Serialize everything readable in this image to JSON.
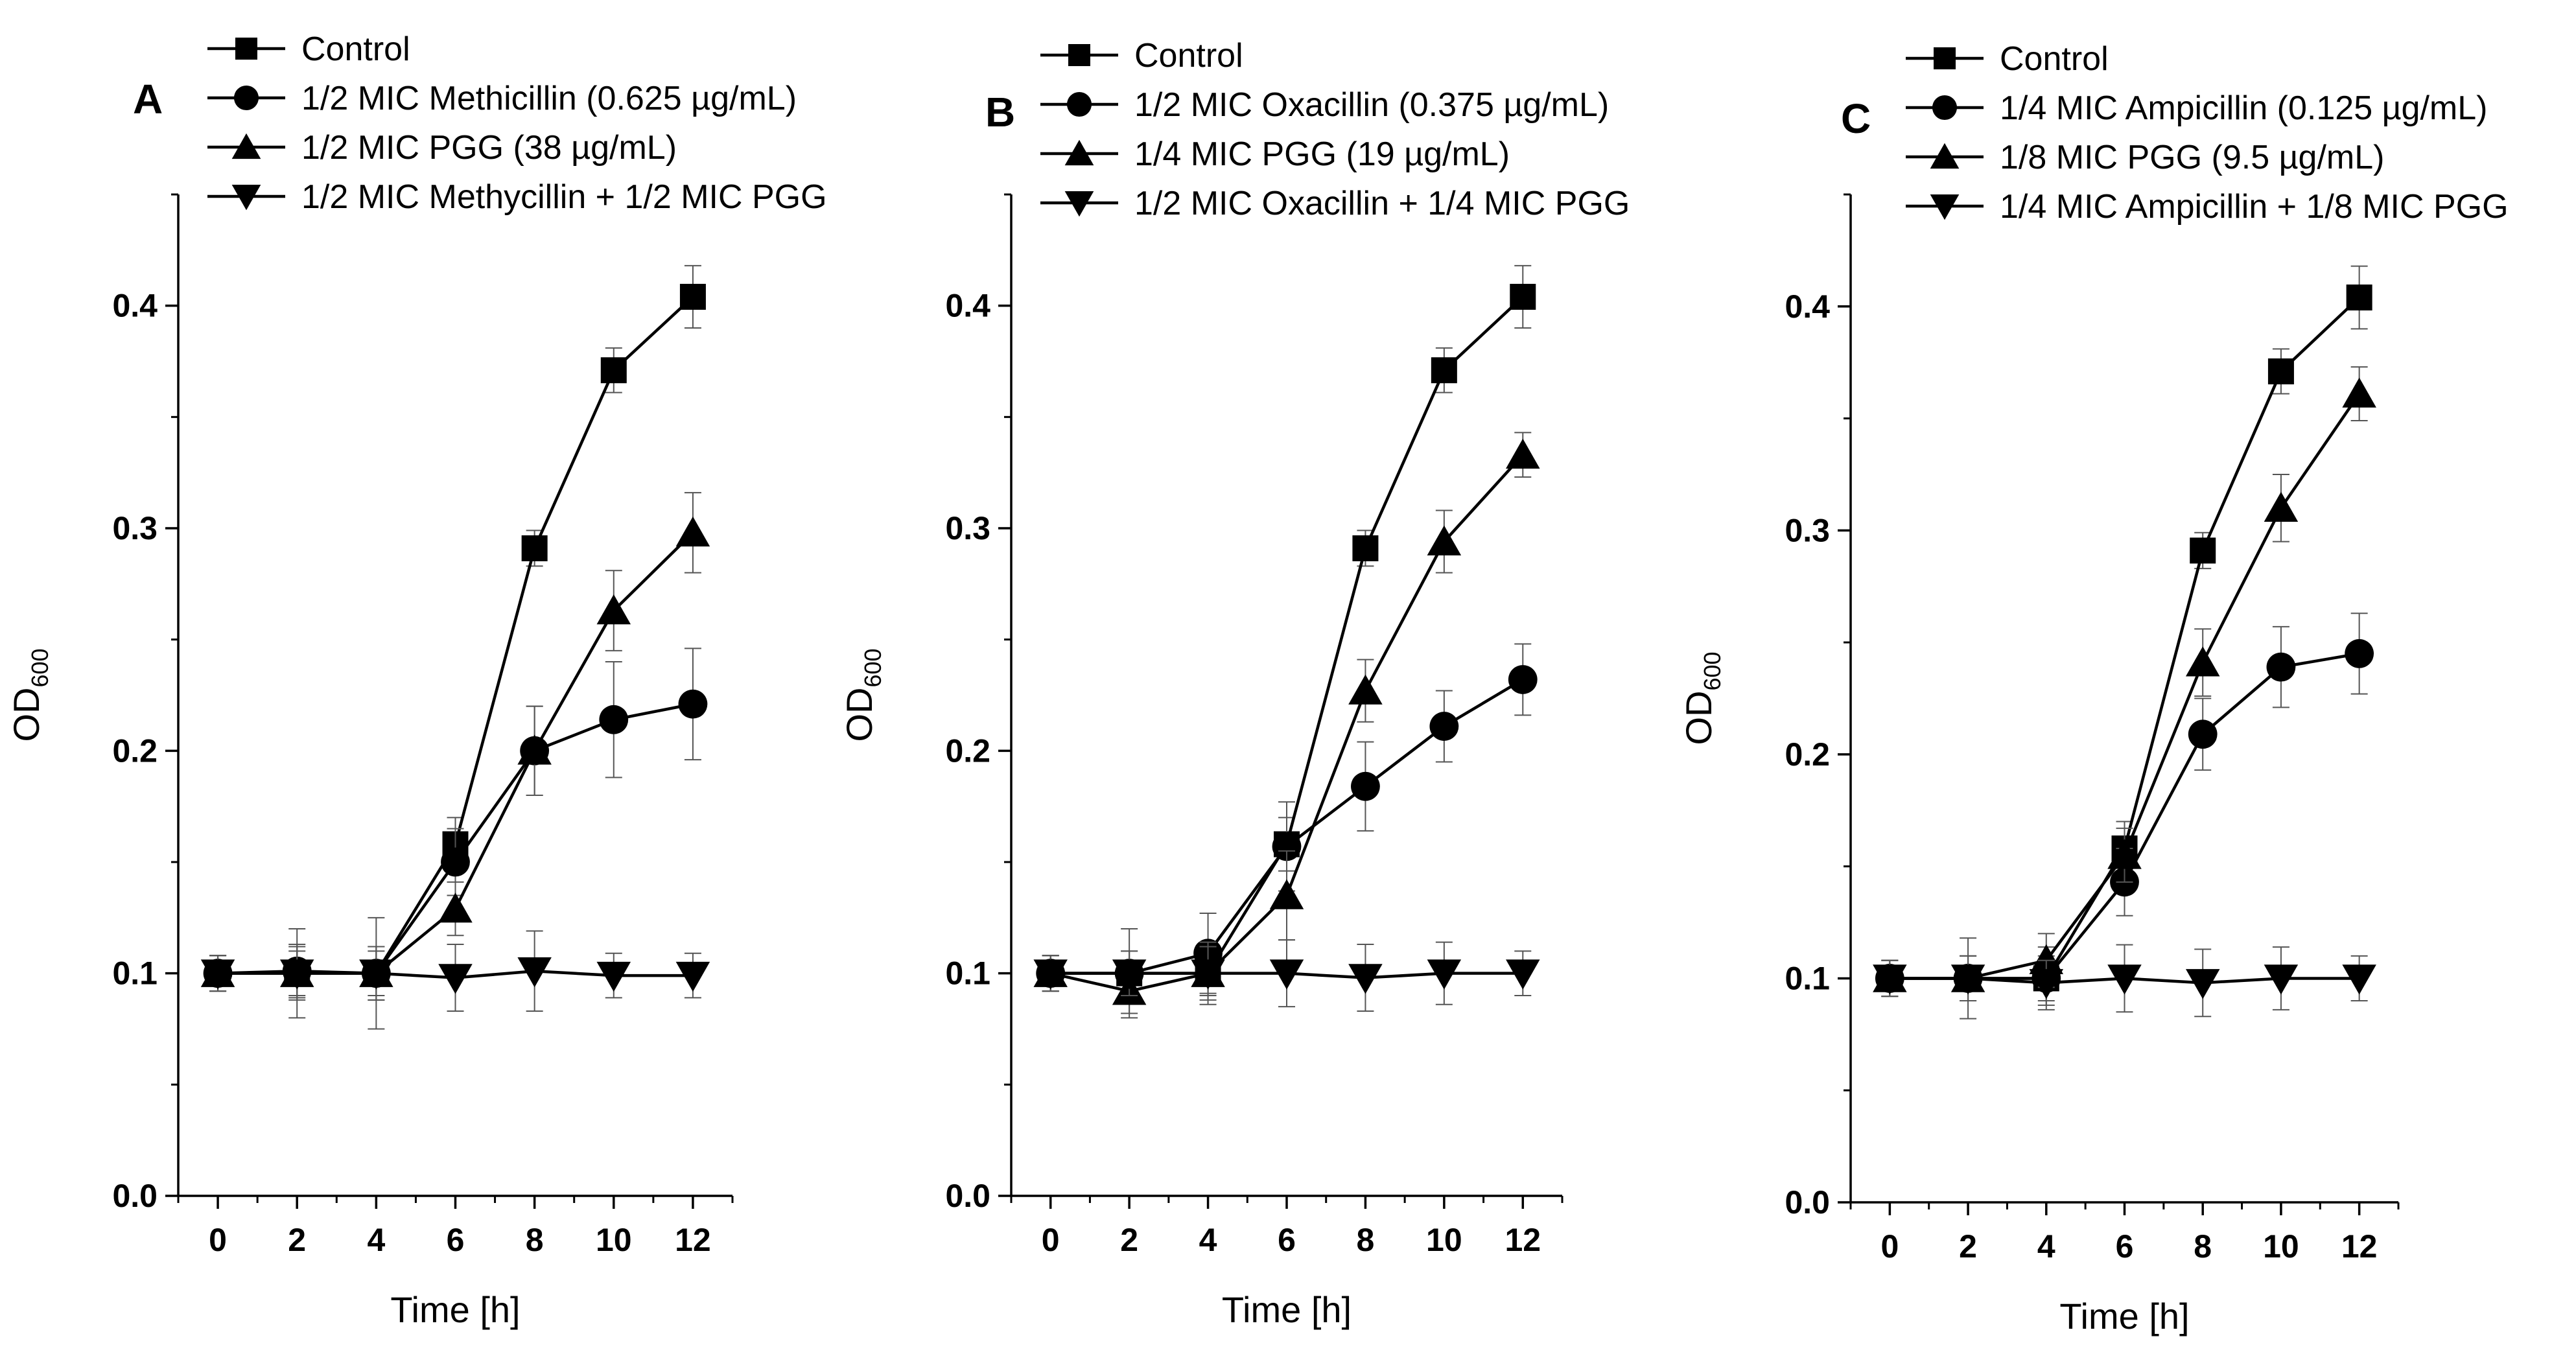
{
  "figure": {
    "panels": [
      "A",
      "B",
      "C"
    ]
  },
  "chart_data": [
    {
      "panel": "A",
      "type": "line",
      "title": "",
      "xlabel": "Time [h]",
      "ylabel_main": "OD",
      "ylabel_sub": "600",
      "xlim": [
        -1,
        13
      ],
      "ylim": [
        0.0,
        0.45
      ],
      "xticks": [
        0,
        2,
        4,
        6,
        8,
        10,
        12
      ],
      "yticks": [
        0.0,
        0.1,
        0.2,
        0.3,
        0.4
      ],
      "ytick_labels": [
        "0.0",
        "0.1",
        "0.2",
        "0.3",
        "0.4"
      ],
      "legend_position": "top-left",
      "x": [
        0,
        2,
        4,
        6,
        8,
        10,
        12
      ],
      "series": [
        {
          "name": "Control",
          "marker": "square",
          "values": [
            0.1,
            0.1,
            0.1,
            0.158,
            0.291,
            0.371,
            0.404
          ],
          "errors": [
            0.008,
            0.01,
            0.01,
            0.012,
            0.008,
            0.01,
            0.014
          ]
        },
        {
          "name": "1/2 MIC Methicillin (0.625 µg/mL)",
          "marker": "circle",
          "values": [
            0.1,
            0.101,
            0.1,
            0.15,
            0.2,
            0.214,
            0.221
          ],
          "errors": [
            0.008,
            0.012,
            0.012,
            0.015,
            0.02,
            0.026,
            0.025
          ]
        },
        {
          "name": "1/2 MIC PGG (38 µg/mL)",
          "marker": "triangle-up",
          "values": [
            0.1,
            0.1,
            0.1,
            0.129,
            0.2,
            0.263,
            0.298
          ],
          "errors": [
            0.008,
            0.012,
            0.012,
            0.012,
            0.02,
            0.018,
            0.018
          ]
        },
        {
          "name": "1/2 MIC Methycillin + 1/2 MIC PGG",
          "marker": "triangle-down",
          "values": [
            0.1,
            0.1,
            0.1,
            0.098,
            0.101,
            0.099,
            0.099
          ],
          "errors": [
            0.008,
            0.02,
            0.025,
            0.015,
            0.018,
            0.01,
            0.01
          ]
        }
      ]
    },
    {
      "panel": "B",
      "type": "line",
      "title": "",
      "xlabel": "Time [h]",
      "ylabel_main": "OD",
      "ylabel_sub": "600",
      "xlim": [
        -1,
        13
      ],
      "ylim": [
        0.0,
        0.45
      ],
      "xticks": [
        0,
        2,
        4,
        6,
        8,
        10,
        12
      ],
      "yticks": [
        0.0,
        0.1,
        0.2,
        0.3,
        0.4
      ],
      "ytick_labels": [
        "0.0",
        "0.1",
        "0.2",
        "0.3",
        "0.4"
      ],
      "legend_position": "top-left",
      "x": [
        0,
        2,
        4,
        6,
        8,
        10,
        12
      ],
      "series": [
        {
          "name": "Control",
          "marker": "square",
          "values": [
            0.1,
            0.1,
            0.1,
            0.158,
            0.291,
            0.371,
            0.404
          ],
          "errors": [
            0.008,
            0.01,
            0.01,
            0.012,
            0.008,
            0.01,
            0.014
          ]
        },
        {
          "name": "1/2 MIC Oxacillin (0.375 µg/mL)",
          "marker": "circle",
          "values": [
            0.1,
            0.1,
            0.109,
            0.157,
            0.184,
            0.211,
            0.232
          ],
          "errors": [
            0.008,
            0.02,
            0.018,
            0.02,
            0.02,
            0.016,
            0.016
          ]
        },
        {
          "name": "1/4 MIC PGG (19 µg/mL)",
          "marker": "triangle-up",
          "values": [
            0.1,
            0.092,
            0.1,
            0.135,
            0.227,
            0.294,
            0.333
          ],
          "errors": [
            0.008,
            0.01,
            0.012,
            0.02,
            0.014,
            0.014,
            0.01
          ]
        },
        {
          "name": "1/2 MIC Oxacillin + 1/4 MIC PGG",
          "marker": "triangle-down",
          "values": [
            0.1,
            0.1,
            0.1,
            0.1,
            0.098,
            0.1,
            0.1
          ],
          "errors": [
            0.008,
            0.01,
            0.014,
            0.015,
            0.015,
            0.014,
            0.01
          ]
        }
      ]
    },
    {
      "panel": "C",
      "type": "line",
      "title": "",
      "xlabel": "Time [h]",
      "ylabel_main": "OD",
      "ylabel_sub": "600",
      "xlim": [
        -1,
        13
      ],
      "ylim": [
        0.0,
        0.45
      ],
      "xticks": [
        0,
        2,
        4,
        6,
        8,
        10,
        12
      ],
      "yticks": [
        0.0,
        0.1,
        0.2,
        0.3,
        0.4
      ],
      "ytick_labels": [
        "0.0",
        "0.1",
        "0.2",
        "0.3",
        "0.4"
      ],
      "legend_position": "top-left",
      "x": [
        0,
        2,
        4,
        6,
        8,
        10,
        12
      ],
      "series": [
        {
          "name": "Control",
          "marker": "square",
          "values": [
            0.1,
            0.1,
            0.1,
            0.158,
            0.291,
            0.371,
            0.404
          ],
          "errors": [
            0.008,
            0.01,
            0.01,
            0.012,
            0.008,
            0.01,
            0.014
          ]
        },
        {
          "name": "1/4 MIC Ampicillin (0.125 µg/mL)",
          "marker": "circle",
          "values": [
            0.1,
            0.1,
            0.1,
            0.143,
            0.209,
            0.239,
            0.245
          ],
          "errors": [
            0.008,
            0.018,
            0.014,
            0.015,
            0.016,
            0.018,
            0.018
          ]
        },
        {
          "name": "1/8 MIC PGG (9.5 µg/mL)",
          "marker": "triangle-up",
          "values": [
            0.1,
            0.1,
            0.108,
            0.155,
            0.241,
            0.31,
            0.361
          ],
          "errors": [
            0.008,
            0.01,
            0.012,
            0.012,
            0.015,
            0.015,
            0.012
          ]
        },
        {
          "name": "1/4 MIC Ampicillin + 1/8 MIC PGG",
          "marker": "triangle-down",
          "values": [
            0.1,
            0.1,
            0.098,
            0.1,
            0.098,
            0.1,
            0.1
          ],
          "errors": [
            0.008,
            0.01,
            0.01,
            0.015,
            0.015,
            0.014,
            0.01
          ]
        }
      ]
    }
  ]
}
